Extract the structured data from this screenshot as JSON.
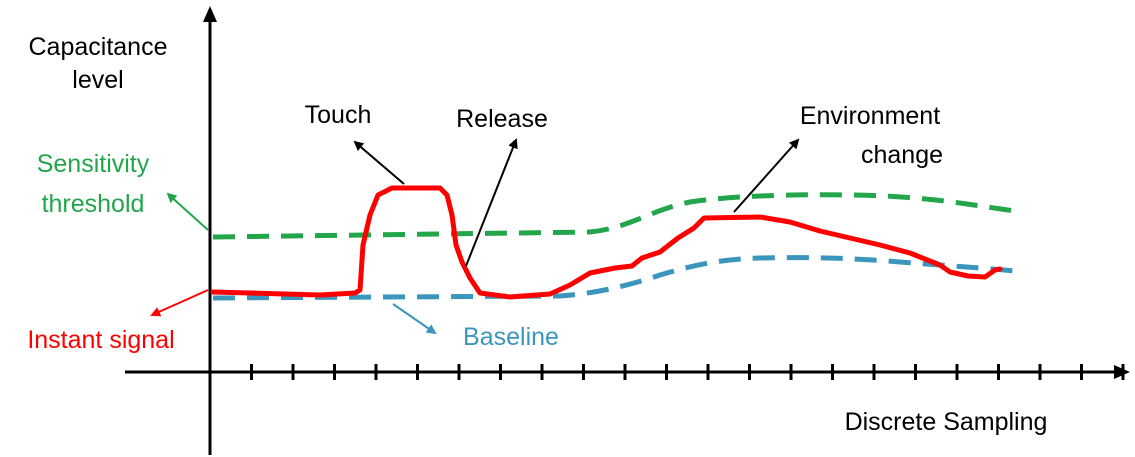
{
  "labels": {
    "y_axis_line1": "Capacitance",
    "y_axis_line2": "level",
    "x_axis": "Discrete Sampling",
    "touch": "Touch",
    "release": "Release",
    "environment_line1": "Environment",
    "environment_line2": "change",
    "sensitivity_line1": "Sensitivity",
    "sensitivity_line2": "threshold",
    "instant_signal": "Instant signal",
    "baseline": "Baseline"
  },
  "colors": {
    "axis": "#000000",
    "signal": "#ff0000",
    "threshold": "#22a54b",
    "baseline": "#3a96bc",
    "annotation": "#000000"
  }
}
